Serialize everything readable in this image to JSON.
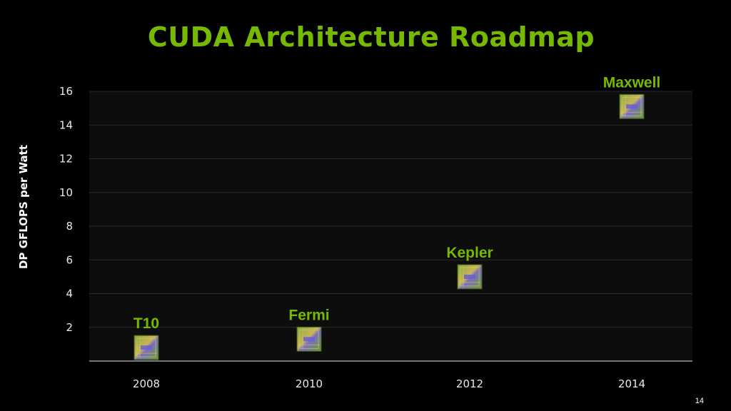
{
  "slide": {
    "page_number": "14"
  },
  "chart_data": {
    "type": "scatter",
    "title": "CUDA Architecture Roadmap",
    "xlabel": "",
    "ylabel": "DP GFLOPS per Watt",
    "x_ticks": [
      "2008",
      "2010",
      "2012",
      "2014"
    ],
    "y_ticks": [
      "2",
      "4",
      "6",
      "8",
      "10",
      "12",
      "14",
      "16"
    ],
    "ylim": [
      0,
      16
    ],
    "grid": true,
    "points": [
      {
        "label": "T10",
        "x": "2008",
        "y": 0.8
      },
      {
        "label": "Fermi",
        "x": "2010",
        "y": 1.3
      },
      {
        "label": "Kepler",
        "x": "2012",
        "y": 5.0
      },
      {
        "label": "Maxwell",
        "x": "2014",
        "y": 15.1
      }
    ],
    "colors": {
      "accent": "#76b900",
      "grid": "#2a2a2a",
      "plot_bg": "#0d0d0d"
    }
  }
}
